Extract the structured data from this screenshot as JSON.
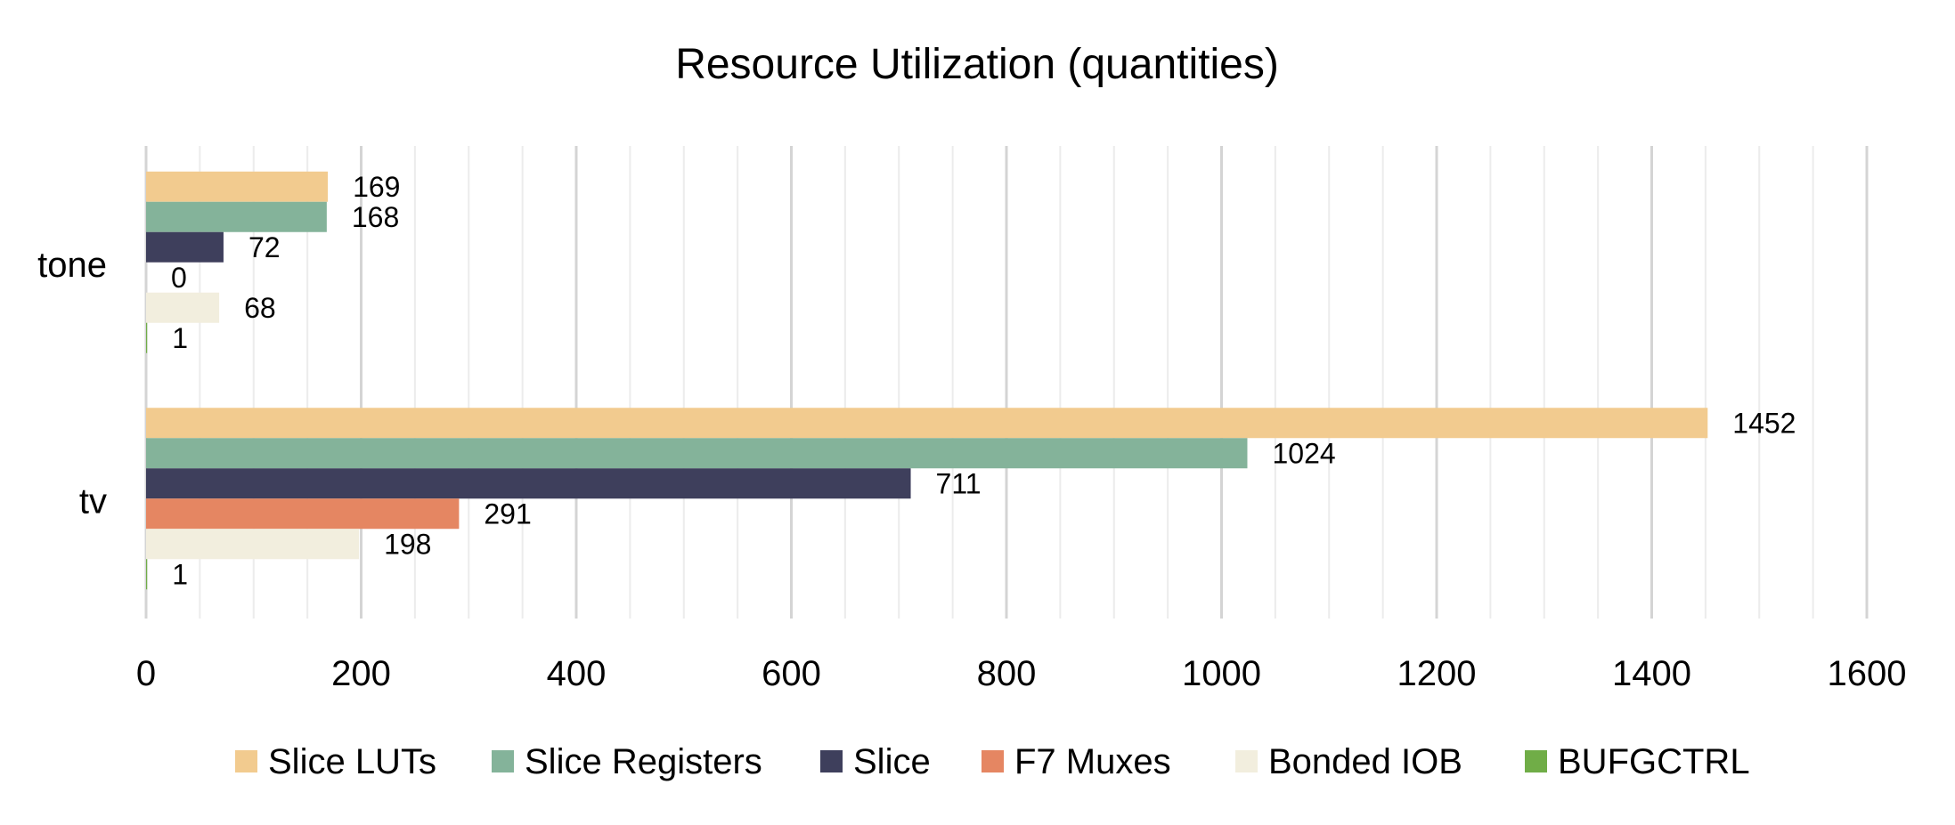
{
  "chart_data": {
    "type": "bar",
    "orientation": "horizontal",
    "title": "Resource Utilization (quantities)",
    "xlabel": "",
    "ylabel": "",
    "categories": [
      "tone",
      "tv"
    ],
    "xlim": [
      0,
      1600
    ],
    "xticks": [
      0,
      200,
      400,
      600,
      800,
      1000,
      1200,
      1400,
      1600
    ],
    "xtick_labels": [
      "0",
      "200",
      "400",
      "600",
      "800",
      "1000",
      "1200",
      "1400",
      "1600"
    ],
    "grid": "vertical major and minor",
    "legend_position": "bottom",
    "series": [
      {
        "name": "Slice LUTs",
        "color": "#F2CB8F",
        "values": [
          169,
          1452
        ]
      },
      {
        "name": "Slice Registers",
        "color": "#84B39A",
        "values": [
          168,
          1024
        ]
      },
      {
        "name": "Slice",
        "color": "#3E3F5C",
        "values": [
          72,
          711
        ]
      },
      {
        "name": "F7 Muxes",
        "color": "#E58662",
        "values": [
          0,
          291
        ]
      },
      {
        "name": "Bonded IOB",
        "color": "#F2EEDE",
        "values": [
          68,
          198
        ]
      },
      {
        "name": "BUFGCTRL",
        "color": "#70AD47",
        "values": [
          1,
          1
        ]
      }
    ]
  }
}
